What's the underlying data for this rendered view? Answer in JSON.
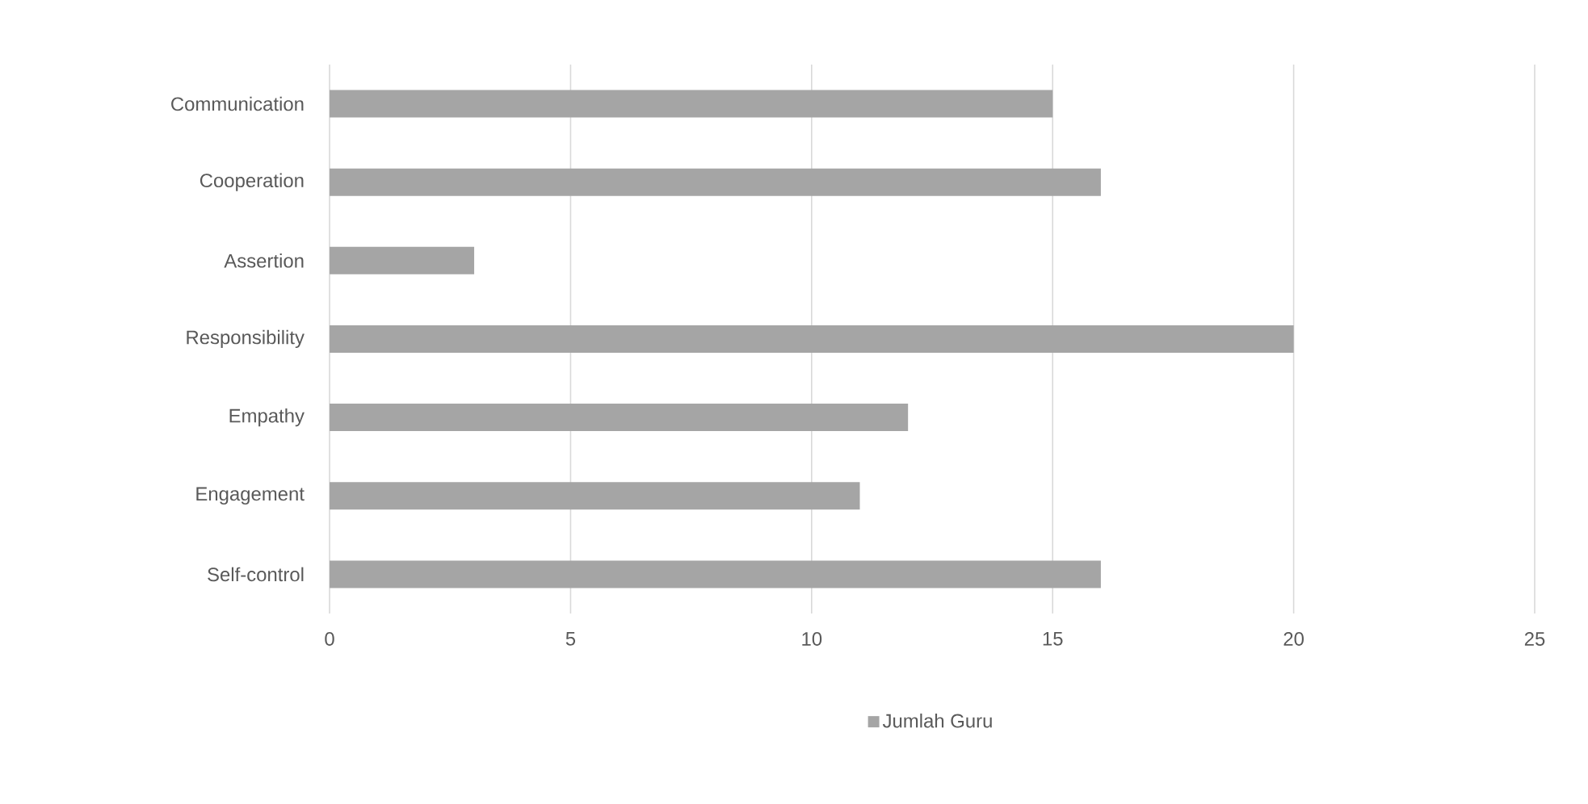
{
  "chart_data": {
    "type": "bar",
    "orientation": "horizontal",
    "categories": [
      "Communication",
      "Cooperation",
      "Assertion",
      "Responsibility",
      "Empathy",
      "Engagement",
      "Self-control"
    ],
    "series": [
      {
        "name": "Jumlah Guru",
        "color": "#a5a5a5",
        "values": [
          15,
          16,
          3,
          20,
          12,
          11,
          16
        ]
      }
    ],
    "xlim": [
      0,
      25
    ],
    "xticks": [
      0,
      5,
      10,
      15,
      20,
      25
    ],
    "grid": "x",
    "legend": "bottom"
  }
}
